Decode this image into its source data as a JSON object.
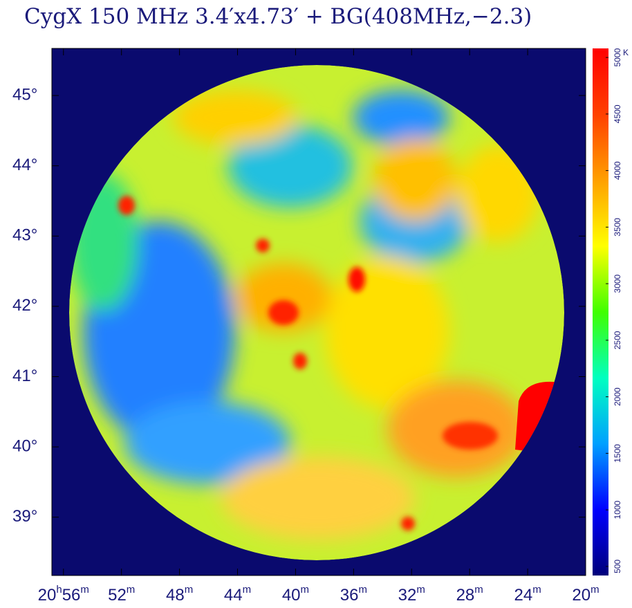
{
  "chart_data": {
    "type": "heatmap",
    "title": "CygX 150 MHz 3.4′x4.73′ + BG(408MHz,−2.3)",
    "xlim": [
      56.8,
      20
    ],
    "xticks": [
      {
        "value": 56,
        "label": "20h56m"
      },
      {
        "value": 52,
        "label": "52m"
      },
      {
        "value": 48,
        "label": "48m"
      },
      {
        "value": 44,
        "label": "44m"
      },
      {
        "value": 40,
        "label": "40m"
      },
      {
        "value": 36,
        "label": "36m"
      },
      {
        "value": 32,
        "label": "32m"
      },
      {
        "value": 28,
        "label": "28m"
      },
      {
        "value": 24,
        "label": "24m"
      },
      {
        "value": 20,
        "label": "20m"
      }
    ],
    "ylim": [
      38.17,
      45.67
    ],
    "yticks": [
      {
        "value": 39,
        "label": "39°"
      },
      {
        "value": 40,
        "label": "40°"
      },
      {
        "value": 41,
        "label": "41°"
      },
      {
        "value": 42,
        "label": "42°"
      },
      {
        "value": 43,
        "label": "43°"
      },
      {
        "value": 44,
        "label": "44°"
      },
      {
        "value": 45,
        "label": "45°"
      }
    ],
    "colorbar": {
      "label": "K",
      "lim": [
        420,
        5080
      ],
      "ticks": [
        500,
        1000,
        1500,
        2000,
        2500,
        3000,
        3500,
        4000,
        4500,
        5000
      ],
      "colors": [
        "#00007a",
        "#0000ff",
        "#00a0ff",
        "#00ffc0",
        "#40ff00",
        "#ffff00",
        "#ffa000",
        "#ff4000",
        "#ff0000"
      ]
    }
  }
}
